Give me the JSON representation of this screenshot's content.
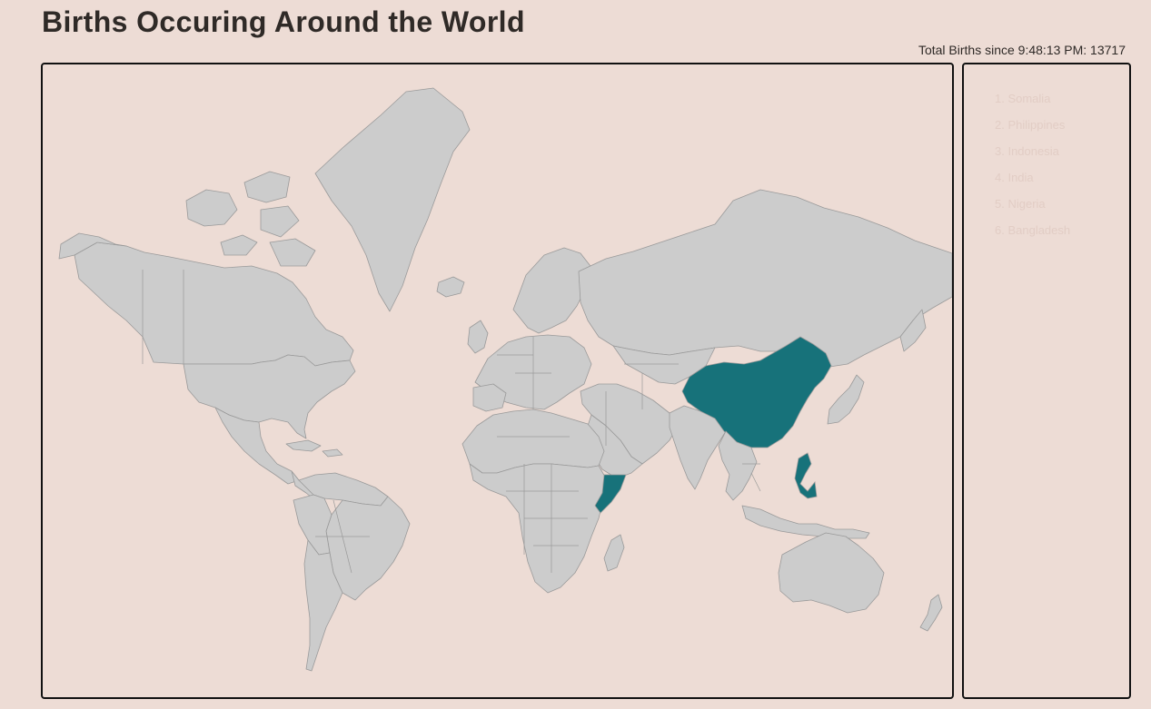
{
  "header": {
    "title": "Births Occuring Around the World",
    "total_births": "Total Births since 9:48:13 PM: 13717"
  },
  "map": {
    "land_color": "#cccccc",
    "border_color": "#9a9a9a",
    "highlight_color": "#17727a",
    "highlighted_regions": [
      "china",
      "somalia",
      "philippines"
    ]
  },
  "recent_births": [
    "1. Somalia",
    "2. Philippines",
    "3. Indonesia",
    "4. India",
    "5. Nigeria",
    "6. Bangladesh"
  ]
}
